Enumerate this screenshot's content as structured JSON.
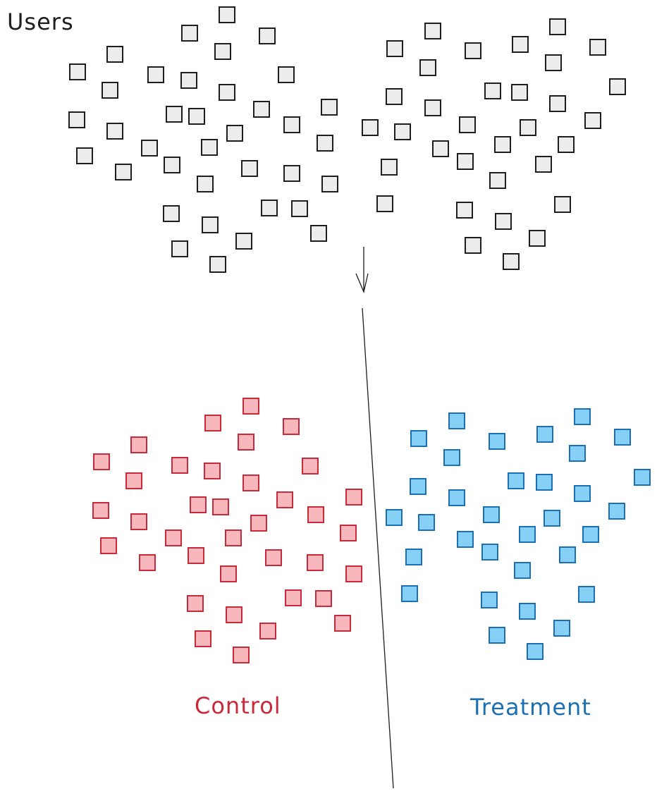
{
  "labels": {
    "users": "Users",
    "control": "Control",
    "treatment": "Treatment"
  },
  "colors": {
    "users_fill": "#ececec",
    "users_stroke": "#1e1e1e",
    "control_fill": "#f7b7bc",
    "control_stroke": "#c92a3a",
    "treatment_fill": "#86d0f5",
    "treatment_stroke": "#1c6fb0",
    "control_text": "#c92a3a",
    "treatment_text": "#1c6fb0",
    "users_text": "#1e1e1e",
    "line": "#1e1e1e"
  },
  "icons": {
    "arrow": "arrow-down-icon",
    "divider": "split-divider-line"
  }
}
